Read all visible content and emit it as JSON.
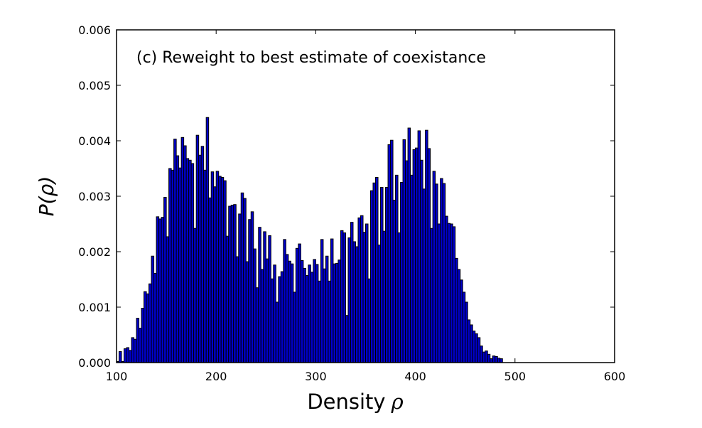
{
  "chart_data": {
    "type": "bar",
    "title": "",
    "annotation": "(c) Reweight to best estimate of coexistance",
    "xlabel": "Density",
    "xlabel_symbol": "ρ",
    "ylabel": "P(ρ)",
    "xlim": [
      100,
      600
    ],
    "ylim": [
      0,
      0.006
    ],
    "xticks": [
      100,
      200,
      300,
      400,
      500,
      600
    ],
    "yticks": [
      0,
      0.001,
      0.002,
      0.003,
      0.004,
      0.005,
      0.006
    ],
    "xtick_labels": [
      "100",
      "200",
      "300",
      "400",
      "500",
      "600"
    ],
    "ytick_labels": [
      "0.000",
      "0.001",
      "0.002",
      "0.003",
      "0.004",
      "0.005",
      "0.006"
    ],
    "grid": false,
    "bin_start": 100,
    "bin_width": 2.5,
    "colors": {
      "bar_fill": "#0000cc",
      "bar_edge": "#000000"
    },
    "values": [
      2e-05,
      0.0002,
      2e-05,
      0.00025,
      0.00027,
      0.00022,
      0.00045,
      0.00042,
      0.0008,
      0.00062,
      0.00098,
      0.00128,
      0.00124,
      0.00142,
      0.00192,
      0.00161,
      0.00263,
      0.00259,
      0.00262,
      0.00298,
      0.00227,
      0.0035,
      0.00347,
      0.00403,
      0.00373,
      0.00351,
      0.00406,
      0.00391,
      0.00368,
      0.00365,
      0.00359,
      0.00242,
      0.0041,
      0.00374,
      0.0039,
      0.00347,
      0.00442,
      0.00297,
      0.00344,
      0.00317,
      0.00345,
      0.00336,
      0.00334,
      0.00328,
      0.00228,
      0.00282,
      0.00284,
      0.00285,
      0.00191,
      0.00268,
      0.00306,
      0.00296,
      0.00182,
      0.00258,
      0.00272,
      0.00205,
      0.00135,
      0.00244,
      0.00168,
      0.00236,
      0.00187,
      0.00229,
      0.00151,
      0.00176,
      0.00109,
      0.00155,
      0.00164,
      0.00222,
      0.00195,
      0.00183,
      0.00178,
      0.00127,
      0.00206,
      0.00214,
      0.00184,
      0.0017,
      0.00157,
      0.00176,
      0.00163,
      0.00186,
      0.00177,
      0.00147,
      0.00222,
      0.00169,
      0.00192,
      0.00147,
      0.00223,
      0.00178,
      0.00179,
      0.00185,
      0.00238,
      0.00234,
      0.00085,
      0.00225,
      0.00253,
      0.00218,
      0.00209,
      0.00261,
      0.00265,
      0.00235,
      0.0025,
      0.00151,
      0.0031,
      0.00324,
      0.00334,
      0.00212,
      0.00316,
      0.00237,
      0.00316,
      0.00393,
      0.00401,
      0.00293,
      0.00338,
      0.00234,
      0.00325,
      0.00402,
      0.00364,
      0.00423,
      0.00338,
      0.00384,
      0.00387,
      0.00418,
      0.00365,
      0.00313,
      0.00419,
      0.00386,
      0.00242,
      0.00345,
      0.00322,
      0.0025,
      0.00332,
      0.00323,
      0.00264,
      0.00251,
      0.0025,
      0.00245,
      0.00188,
      0.00168,
      0.00149,
      0.00127,
      0.00109,
      0.00077,
      0.00068,
      0.00057,
      0.00052,
      0.00045,
      0.0003,
      0.00019,
      0.00021,
      0.00015,
      7e-05,
      0.00012,
      0.00011,
      8e-05,
      7e-05
    ]
  }
}
